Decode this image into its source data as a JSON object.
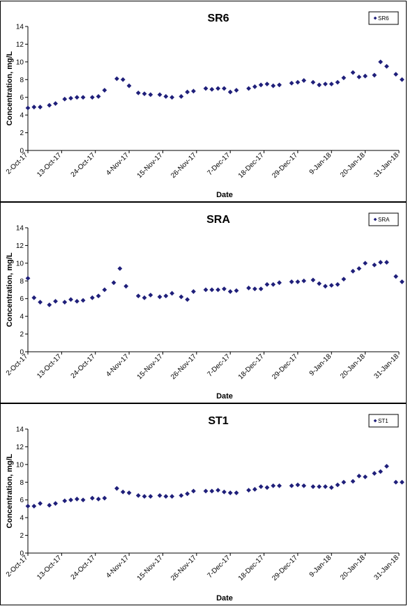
{
  "colors": {
    "marker": "#1f1f7a",
    "axis": "#000000"
  },
  "chart_data": [
    {
      "type": "scatter",
      "title": "SR6",
      "xlabel": "Date",
      "ylabel": "Concentration, mg/L",
      "legend": {
        "placement": "top-right",
        "entries": [
          "SR6"
        ]
      },
      "ylim": [
        0,
        14
      ],
      "yticks": [
        0,
        2,
        4,
        6,
        8,
        10,
        12,
        14
      ],
      "xlim": [
        "2017-10-02",
        "2018-01-31"
      ],
      "xticks": [
        "2-Oct-17",
        "13-Oct-17",
        "24-Oct-17",
        "4-Nov-17",
        "15-Nov-17",
        "26-Nov-17",
        "7-Dec-17",
        "18-Dec-17",
        "29-Dec-17",
        "9-Jan-18",
        "20-Jan-18",
        "31-Jan-18"
      ],
      "grid": false,
      "series": [
        {
          "name": "SR6",
          "x": [
            "2017-10-02",
            "2017-10-04",
            "2017-10-06",
            "2017-10-09",
            "2017-10-11",
            "2017-10-14",
            "2017-10-16",
            "2017-10-18",
            "2017-10-20",
            "2017-10-23",
            "2017-10-25",
            "2017-10-27",
            "2017-10-31",
            "2017-11-02",
            "2017-11-04",
            "2017-11-07",
            "2017-11-09",
            "2017-11-11",
            "2017-11-14",
            "2017-11-16",
            "2017-11-18",
            "2017-11-21",
            "2017-11-23",
            "2017-11-25",
            "2017-11-29",
            "2017-12-01",
            "2017-12-03",
            "2017-12-05",
            "2017-12-07",
            "2017-12-09",
            "2017-12-13",
            "2017-12-15",
            "2017-12-17",
            "2017-12-19",
            "2017-12-21",
            "2017-12-23",
            "2017-12-27",
            "2017-12-29",
            "2017-12-31",
            "2018-01-03",
            "2018-01-05",
            "2018-01-07",
            "2018-01-09",
            "2018-01-11",
            "2018-01-13",
            "2018-01-16",
            "2018-01-18",
            "2018-01-20",
            "2018-01-23",
            "2018-01-25",
            "2018-01-27",
            "2018-01-30",
            "2018-02-01"
          ],
          "y": [
            4.8,
            4.9,
            4.9,
            5.1,
            5.3,
            5.8,
            5.9,
            6.0,
            6.0,
            6.0,
            6.1,
            6.8,
            8.1,
            8.0,
            7.3,
            6.5,
            6.4,
            6.3,
            6.3,
            6.1,
            6.0,
            6.1,
            6.6,
            6.7,
            7.0,
            6.9,
            7.0,
            7.0,
            6.6,
            6.8,
            7.0,
            7.2,
            7.4,
            7.5,
            7.3,
            7.4,
            7.6,
            7.7,
            7.9,
            7.7,
            7.4,
            7.5,
            7.5,
            7.7,
            8.2,
            8.8,
            8.3,
            8.4,
            8.5,
            10.0,
            9.5,
            8.6,
            8.0
          ]
        }
      ]
    },
    {
      "type": "scatter",
      "title": "SRA",
      "xlabel": "Date",
      "ylabel": "Concentration, mg/L",
      "legend": {
        "placement": "top-right",
        "entries": [
          "SRA"
        ]
      },
      "ylim": [
        0,
        14
      ],
      "yticks": [
        0,
        2,
        4,
        6,
        8,
        10,
        12,
        14
      ],
      "xlim": [
        "2017-10-02",
        "2018-01-31"
      ],
      "xticks": [
        "2-Oct-17",
        "13-Oct-17",
        "24-Oct-17",
        "4-Nov-17",
        "15-Nov-17",
        "26-Nov-17",
        "7-Dec-17",
        "18-Dec-17",
        "29-Dec-17",
        "9-Jan-18",
        "20-Jan-18",
        "31-Jan-18"
      ],
      "grid": false,
      "series": [
        {
          "name": "SRA",
          "x": [
            "2017-10-02",
            "2017-10-04",
            "2017-10-06",
            "2017-10-09",
            "2017-10-11",
            "2017-10-14",
            "2017-10-16",
            "2017-10-18",
            "2017-10-20",
            "2017-10-23",
            "2017-10-25",
            "2017-10-27",
            "2017-10-30",
            "2017-11-01",
            "2017-11-03",
            "2017-11-07",
            "2017-11-09",
            "2017-11-11",
            "2017-11-14",
            "2017-11-16",
            "2017-11-18",
            "2017-11-21",
            "2017-11-23",
            "2017-11-25",
            "2017-11-29",
            "2017-12-01",
            "2017-12-03",
            "2017-12-05",
            "2017-12-07",
            "2017-12-09",
            "2017-12-13",
            "2017-12-15",
            "2017-12-17",
            "2017-12-19",
            "2017-12-21",
            "2017-12-23",
            "2017-12-27",
            "2017-12-29",
            "2017-12-31",
            "2018-01-03",
            "2018-01-05",
            "2018-01-07",
            "2018-01-09",
            "2018-01-11",
            "2018-01-13",
            "2018-01-16",
            "2018-01-18",
            "2018-01-20",
            "2018-01-23",
            "2018-01-25",
            "2018-01-27",
            "2018-01-30",
            "2018-02-01"
          ],
          "y": [
            8.3,
            6.1,
            5.6,
            5.3,
            5.7,
            5.6,
            5.9,
            5.7,
            5.8,
            6.1,
            6.3,
            7.0,
            7.8,
            9.4,
            7.4,
            6.3,
            6.1,
            6.4,
            6.2,
            6.3,
            6.6,
            6.2,
            5.9,
            6.8,
            7.0,
            7.0,
            7.0,
            7.1,
            6.8,
            6.9,
            7.2,
            7.1,
            7.1,
            7.6,
            7.6,
            7.8,
            7.9,
            7.9,
            8.0,
            8.1,
            7.7,
            7.4,
            7.5,
            7.6,
            8.2,
            9.1,
            9.4,
            10.0,
            9.8,
            10.1,
            10.1,
            8.5,
            7.9
          ]
        }
      ]
    },
    {
      "type": "scatter",
      "title": "ST1",
      "xlabel": "Date",
      "ylabel": "Concentration, mg/L",
      "legend": {
        "placement": "top-right",
        "entries": [
          "ST1"
        ]
      },
      "ylim": [
        0,
        14
      ],
      "yticks": [
        0,
        2,
        4,
        6,
        8,
        10,
        12,
        14
      ],
      "xlim": [
        "2017-10-02",
        "2018-01-31"
      ],
      "xticks": [
        "2-Oct-17",
        "13-Oct-17",
        "24-Oct-17",
        "4-Nov-17",
        "15-Nov-17",
        "26-Nov-17",
        "7-Dec-17",
        "18-Dec-17",
        "29-Dec-17",
        "9-Jan-18",
        "20-Jan-18",
        "31-Jan-18"
      ],
      "grid": false,
      "series": [
        {
          "name": "ST1",
          "x": [
            "2017-10-02",
            "2017-10-04",
            "2017-10-06",
            "2017-10-09",
            "2017-10-11",
            "2017-10-14",
            "2017-10-16",
            "2017-10-18",
            "2017-10-20",
            "2017-10-23",
            "2017-10-25",
            "2017-10-27",
            "2017-10-31",
            "2017-11-02",
            "2017-11-04",
            "2017-11-07",
            "2017-11-09",
            "2017-11-11",
            "2017-11-14",
            "2017-11-16",
            "2017-11-18",
            "2017-11-21",
            "2017-11-23",
            "2017-11-25",
            "2017-11-29",
            "2017-12-01",
            "2017-12-03",
            "2017-12-05",
            "2017-12-07",
            "2017-12-09",
            "2017-12-13",
            "2017-12-15",
            "2017-12-17",
            "2017-12-19",
            "2017-12-21",
            "2017-12-23",
            "2017-12-27",
            "2017-12-29",
            "2017-12-31",
            "2018-01-03",
            "2018-01-05",
            "2018-01-07",
            "2018-01-09",
            "2018-01-11",
            "2018-01-13",
            "2018-01-16",
            "2018-01-18",
            "2018-01-20",
            "2018-01-23",
            "2018-01-25",
            "2018-01-27",
            "2018-01-30",
            "2018-02-01"
          ],
          "y": [
            5.3,
            5.3,
            5.6,
            5.4,
            5.6,
            5.9,
            6.0,
            6.1,
            6.0,
            6.2,
            6.1,
            6.2,
            7.3,
            6.9,
            6.8,
            6.5,
            6.4,
            6.4,
            6.5,
            6.4,
            6.4,
            6.5,
            6.7,
            7.0,
            7.0,
            7.0,
            7.1,
            6.9,
            6.8,
            6.8,
            7.1,
            7.2,
            7.5,
            7.4,
            7.6,
            7.6,
            7.6,
            7.7,
            7.6,
            7.5,
            7.5,
            7.5,
            7.4,
            7.7,
            8.0,
            8.1,
            8.7,
            8.6,
            9.0,
            9.2,
            9.8,
            8.0,
            8.0
          ]
        }
      ]
    }
  ]
}
